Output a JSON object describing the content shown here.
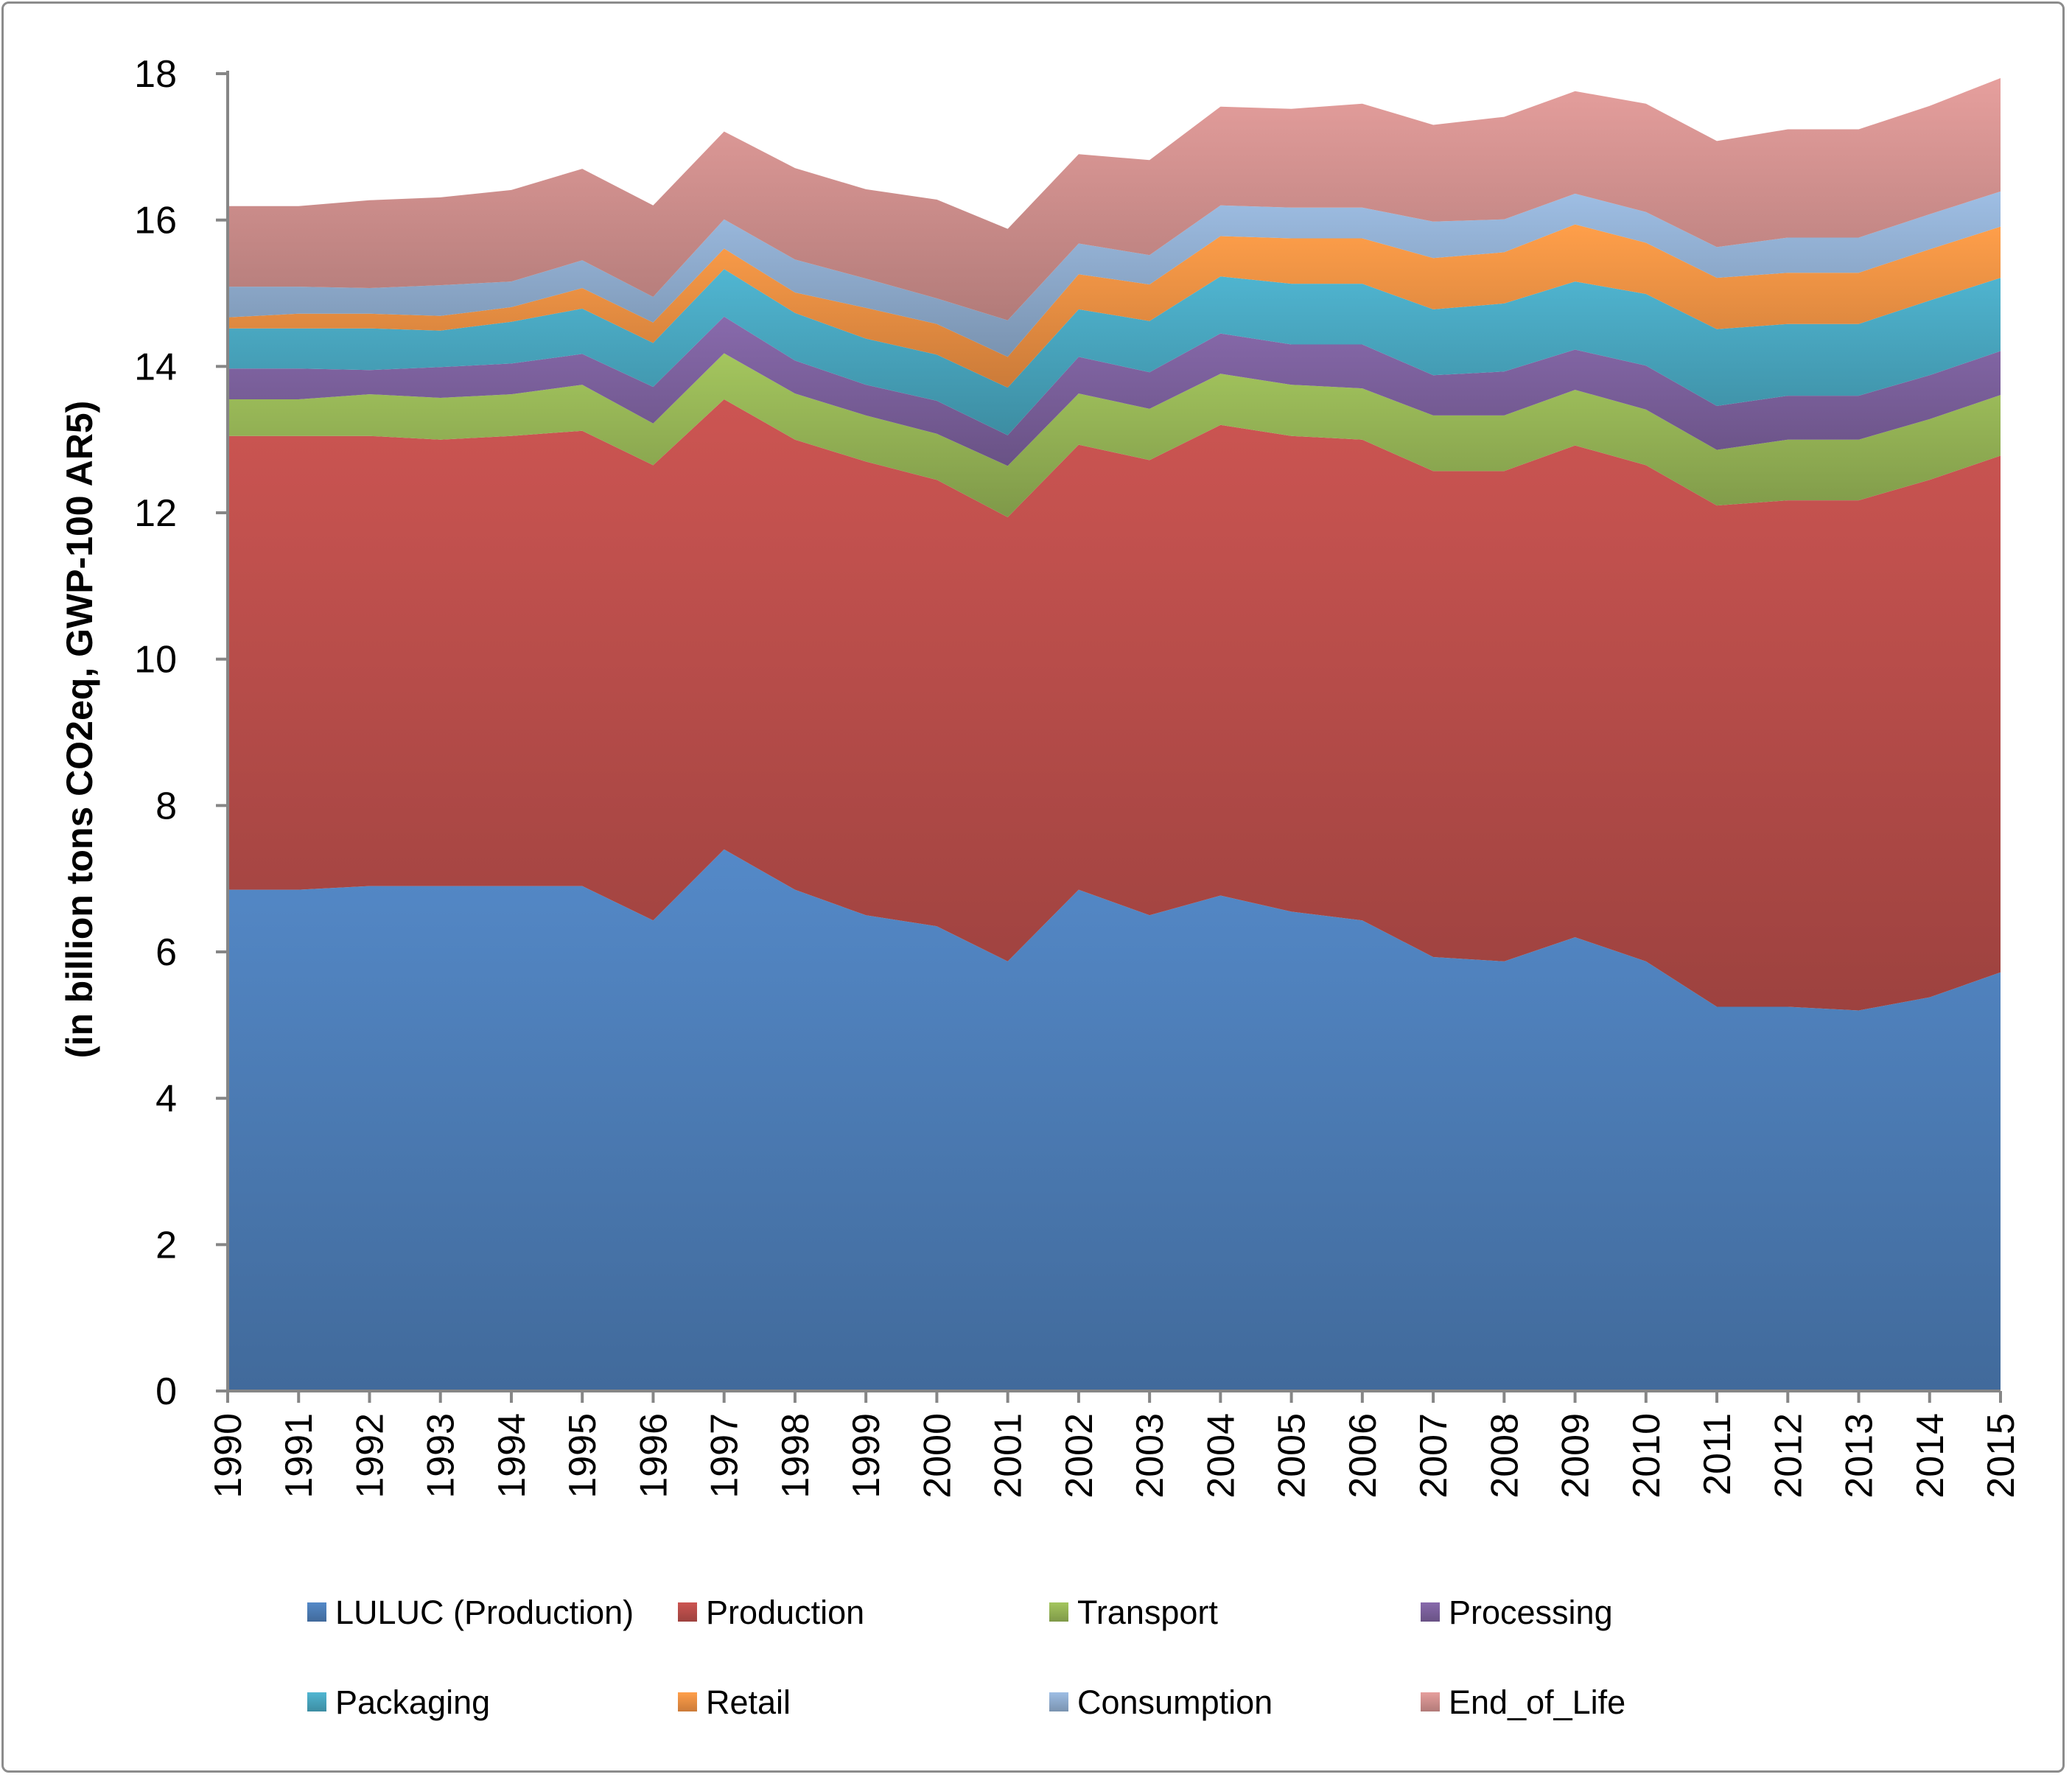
{
  "chart_data": {
    "type": "area",
    "stacked": true,
    "title": "",
    "xlabel": "",
    "ylabel": "(in billion tons CO2eq, GWP-100 AR5)",
    "ylim": [
      0,
      18
    ],
    "yticks": [
      0,
      2,
      4,
      6,
      8,
      10,
      12,
      14,
      16,
      18
    ],
    "grid": false,
    "legend_position": "bottom",
    "x": [
      "1990",
      "1991",
      "1992",
      "1993",
      "1994",
      "1995",
      "1996",
      "1997",
      "1998",
      "1999",
      "2000",
      "2001",
      "2002",
      "2003",
      "2004",
      "2005",
      "2006",
      "2007",
      "2008",
      "2009",
      "2010",
      "2011",
      "2012",
      "2013",
      "2014",
      "2015"
    ],
    "series": [
      {
        "name": "LULUC (Production)",
        "color": "#4f81bd",
        "values": [
          6.85,
          6.85,
          6.9,
          6.9,
          6.9,
          6.9,
          6.43,
          7.4,
          6.85,
          6.5,
          6.35,
          5.87,
          6.85,
          6.5,
          6.77,
          6.55,
          6.43,
          5.93,
          5.87,
          6.2,
          5.87,
          5.25,
          5.25,
          5.2,
          5.38,
          5.72
        ]
      },
      {
        "name": "Production",
        "color": "#c0504d",
        "values": [
          6.2,
          6.2,
          6.15,
          6.1,
          6.15,
          6.22,
          6.22,
          6.15,
          6.15,
          6.2,
          6.1,
          6.07,
          6.08,
          6.22,
          6.43,
          6.5,
          6.57,
          6.64,
          6.7,
          6.72,
          6.78,
          6.85,
          6.92,
          6.97,
          7.07,
          7.06
        ]
      },
      {
        "name": "Transport",
        "color": "#9bbb59",
        "values": [
          0.5,
          0.5,
          0.57,
          0.57,
          0.57,
          0.63,
          0.57,
          0.63,
          0.63,
          0.63,
          0.63,
          0.7,
          0.7,
          0.7,
          0.7,
          0.7,
          0.7,
          0.76,
          0.76,
          0.76,
          0.76,
          0.76,
          0.83,
          0.83,
          0.83,
          0.83
        ]
      },
      {
        "name": "Processing",
        "color": "#8064a2",
        "values": [
          0.42,
          0.42,
          0.33,
          0.42,
          0.42,
          0.42,
          0.5,
          0.5,
          0.45,
          0.42,
          0.45,
          0.42,
          0.5,
          0.5,
          0.55,
          0.55,
          0.6,
          0.55,
          0.6,
          0.55,
          0.6,
          0.6,
          0.6,
          0.6,
          0.6,
          0.6
        ]
      },
      {
        "name": "Packaging",
        "color": "#4bacc6",
        "values": [
          0.55,
          0.55,
          0.57,
          0.5,
          0.57,
          0.62,
          0.6,
          0.65,
          0.65,
          0.63,
          0.63,
          0.65,
          0.65,
          0.7,
          0.78,
          0.83,
          0.83,
          0.9,
          0.93,
          0.93,
          0.98,
          1.05,
          0.98,
          0.98,
          1.02,
          1.0
        ]
      },
      {
        "name": "Retail",
        "color": "#f79646",
        "values": [
          0.15,
          0.2,
          0.2,
          0.2,
          0.2,
          0.28,
          0.28,
          0.28,
          0.28,
          0.42,
          0.42,
          0.42,
          0.48,
          0.5,
          0.55,
          0.62,
          0.62,
          0.7,
          0.7,
          0.78,
          0.7,
          0.7,
          0.7,
          0.7,
          0.7,
          0.7
        ]
      },
      {
        "name": "Consumption",
        "color": "#95b3d7",
        "values": [
          0.42,
          0.37,
          0.35,
          0.42,
          0.35,
          0.38,
          0.35,
          0.4,
          0.45,
          0.4,
          0.35,
          0.5,
          0.42,
          0.4,
          0.42,
          0.42,
          0.42,
          0.5,
          0.45,
          0.42,
          0.42,
          0.42,
          0.48,
          0.48,
          0.48,
          0.48
        ]
      },
      {
        "name": "End_of_Life",
        "color": "#d99694",
        "values": [
          1.1,
          1.1,
          1.2,
          1.2,
          1.25,
          1.25,
          1.25,
          1.2,
          1.25,
          1.22,
          1.35,
          1.25,
          1.22,
          1.3,
          1.35,
          1.35,
          1.42,
          1.32,
          1.4,
          1.4,
          1.48,
          1.45,
          1.48,
          1.48,
          1.48,
          1.55
        ]
      }
    ]
  }
}
